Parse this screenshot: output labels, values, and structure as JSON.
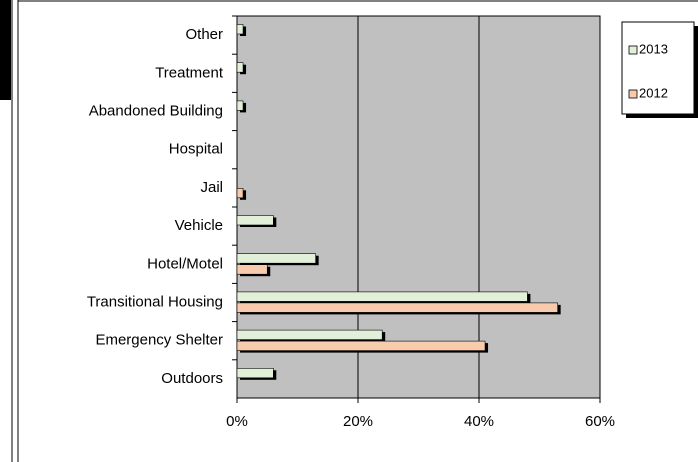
{
  "chart_data": {
    "type": "bar",
    "orientation": "horizontal",
    "categories": [
      "Other",
      "Treatment",
      "Abandoned Building",
      "Hospital",
      "Jail",
      "Vehicle",
      "Hotel/Motel",
      "Transitional Housing",
      "Emergency Shelter",
      "Outdoors"
    ],
    "series": [
      {
        "name": "2013",
        "color": "#e2efd9",
        "values": [
          1,
          1,
          1,
          0,
          0,
          6,
          13,
          48,
          24,
          6
        ]
      },
      {
        "name": "2012",
        "color": "#f8cbad",
        "values": [
          0,
          0,
          0,
          0,
          1,
          0,
          5,
          53,
          41,
          0
        ]
      }
    ],
    "xlim": [
      0,
      60
    ],
    "xticks": [
      {
        "value": 0,
        "label": "0%"
      },
      {
        "value": 20,
        "label": "20%"
      },
      {
        "value": 40,
        "label": "40%"
      },
      {
        "value": 60,
        "label": "60%"
      }
    ],
    "grid": true,
    "legend": "upper right"
  }
}
